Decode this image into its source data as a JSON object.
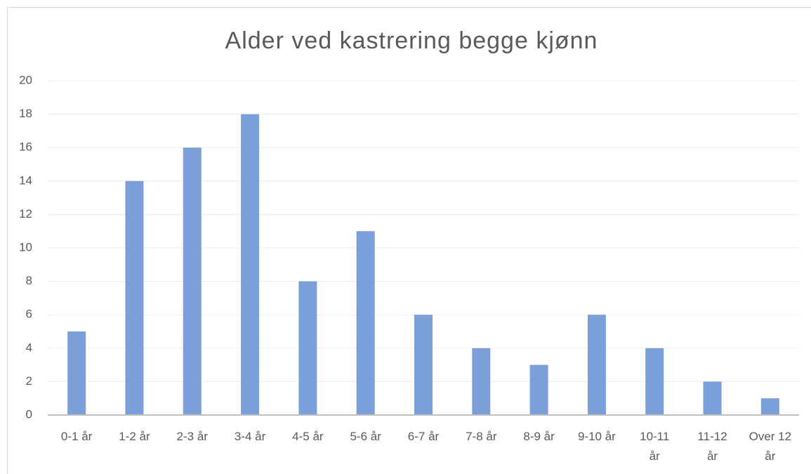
{
  "chart_data": {
    "type": "bar",
    "title": "Alder ved kastrering begge kjønn",
    "categories": [
      "0-1 år",
      "1-2 år",
      "2-3 år",
      "3-4 år",
      "4-5 år",
      "5-6 år",
      "6-7 år",
      "7-8 år",
      "8-9 år",
      "9-10 år",
      "10-11 år",
      "11-12 år",
      "Over 12 år"
    ],
    "values": [
      5,
      14,
      16,
      18,
      8,
      11,
      6,
      4,
      3,
      6,
      4,
      2,
      1
    ],
    "color": "#7b9fd9",
    "ylim": [
      0,
      20
    ],
    "yticks": [
      0,
      2,
      4,
      6,
      8,
      10,
      12,
      14,
      16,
      18,
      20
    ],
    "grid": true
  }
}
